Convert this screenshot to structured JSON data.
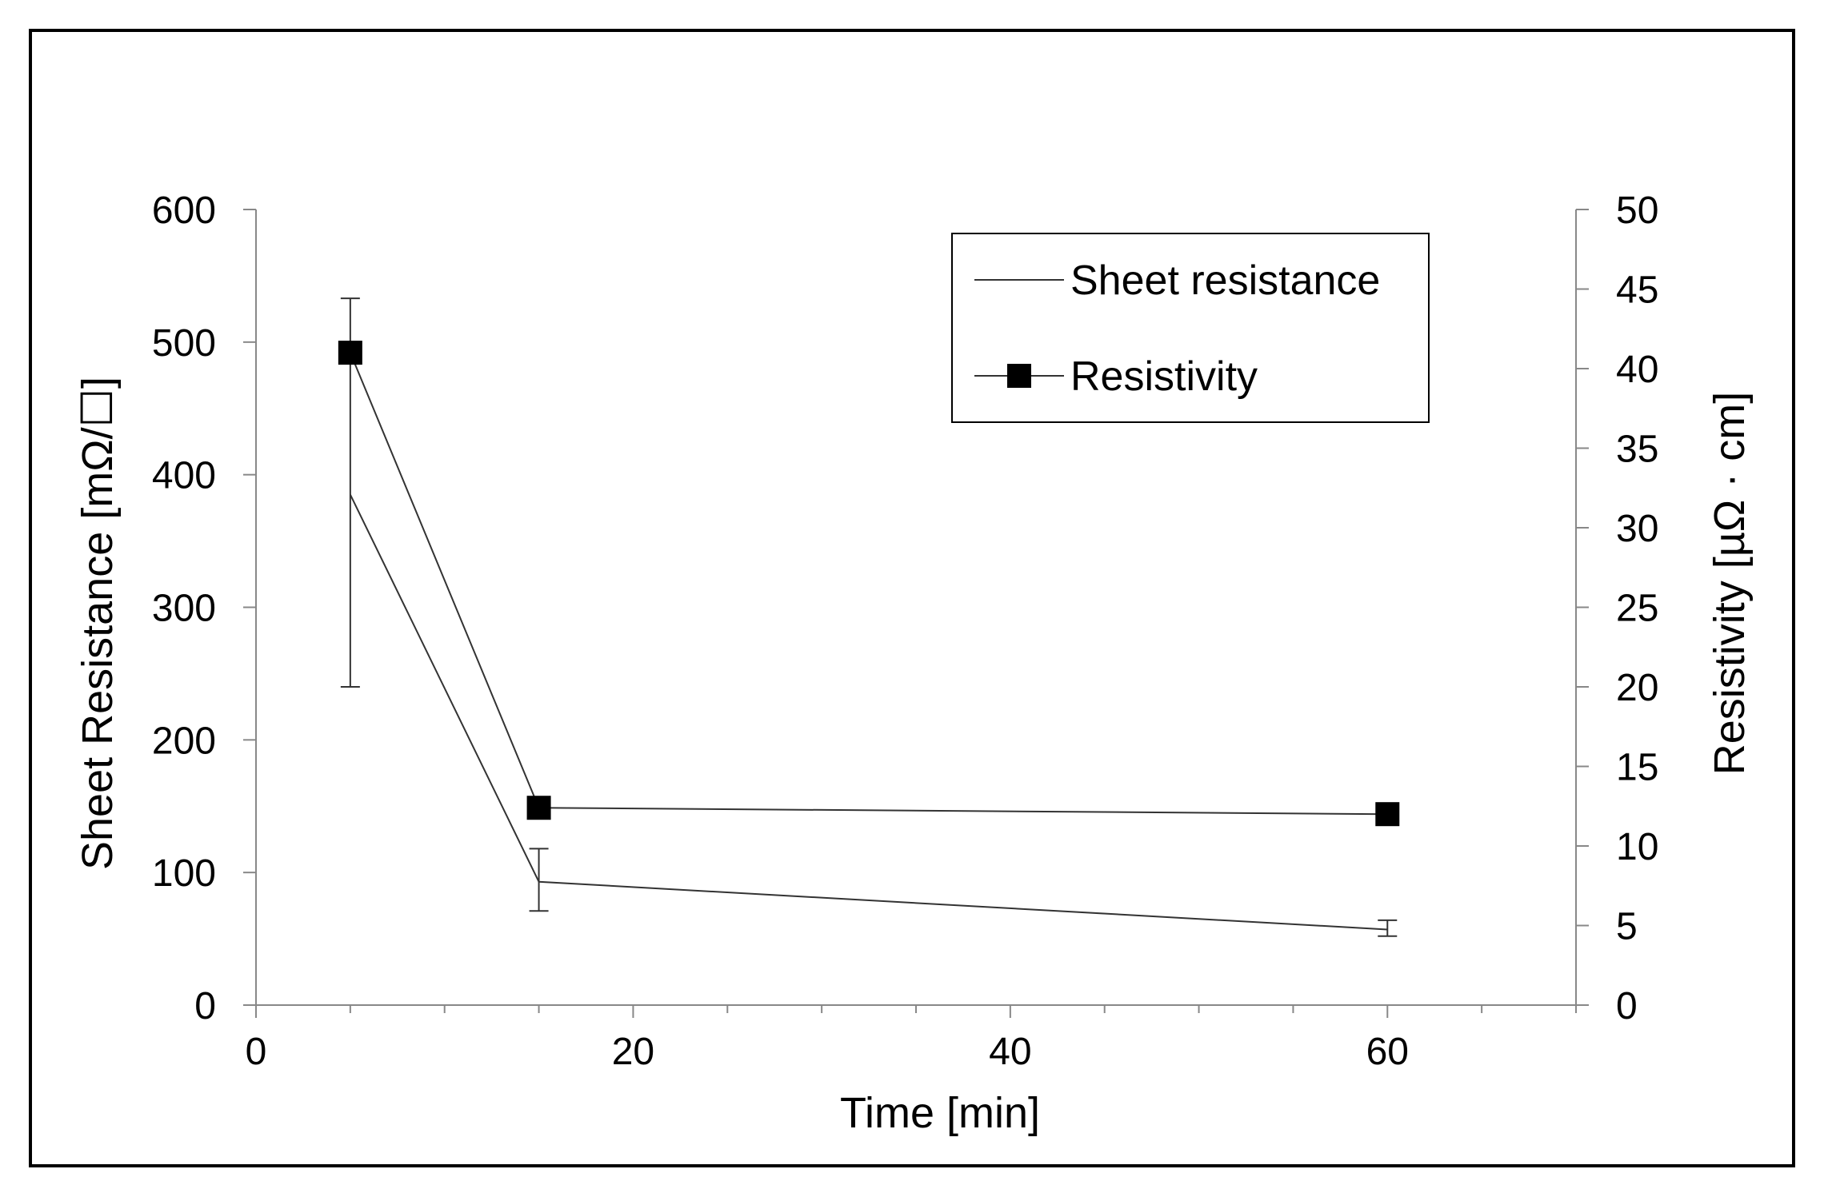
{
  "chart_data": {
    "type": "line",
    "title": "",
    "xlabel": "Time [min]",
    "ylabel": "Sheet Resistance [mΩ/☐]",
    "y2label": "Resistivity [µΩ · cm]",
    "xlim": [
      0,
      70
    ],
    "ylim": [
      0,
      600
    ],
    "y2lim": [
      0,
      50
    ],
    "xticks": [
      0,
      20,
      40,
      60
    ],
    "xtick_labels": [
      "0",
      "20",
      "40",
      "60"
    ],
    "yticks": [
      0,
      100,
      200,
      300,
      400,
      500,
      600
    ],
    "ytick_labels": [
      "0",
      "100",
      "200",
      "300",
      "400",
      "500",
      "600"
    ],
    "y2ticks": [
      0,
      5,
      10,
      15,
      20,
      25,
      30,
      35,
      40,
      45,
      50
    ],
    "y2tick_labels": [
      "0",
      "5",
      "10",
      "15",
      "20",
      "25",
      "30",
      "35",
      "40",
      "45",
      "50"
    ],
    "grid": false,
    "legend_position": "top-right",
    "series": [
      {
        "name": "Sheet resistance",
        "axis": "left",
        "marker": "none",
        "x": [
          5,
          15,
          60
        ],
        "values": [
          385,
          93,
          57
        ],
        "error_low": [
          240,
          71,
          52
        ],
        "error_high": [
          533,
          118,
          64
        ]
      },
      {
        "name": "Resistivity",
        "axis": "right",
        "marker": "square",
        "x": [
          5,
          15,
          60
        ],
        "values": [
          41.0,
          12.4,
          12.0
        ]
      }
    ],
    "colors": {
      "line": "#333333",
      "marker": "#000000",
      "axis": "#888888",
      "text": "#000000"
    }
  }
}
